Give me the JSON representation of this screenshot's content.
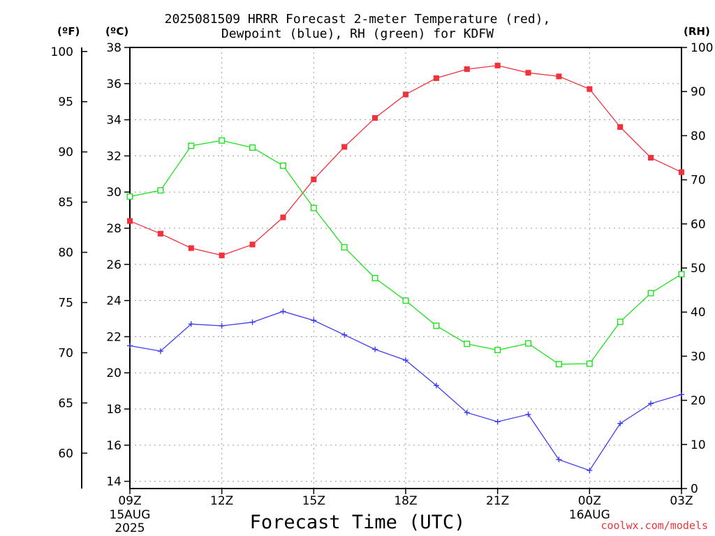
{
  "header": {
    "title_line1": "2025081509 HRRR Forecast 2-meter Temperature (red),",
    "title_line2": "Dewpoint (blue), RH (green) for KDFW",
    "unit_f": "(ºF)",
    "unit_c": "(ºC)",
    "unit_rh": "(RH)"
  },
  "footer": {
    "xlabel": "Forecast Time (UTC)",
    "credit": "coolwx.com/models"
  },
  "chart_data": {
    "type": "line",
    "title": "2025081509 HRRR Forecast 2-meter Temperature (red), Dewpoint (blue), RH (green) for KDFW",
    "xlabel": "Forecast Time (UTC)",
    "x_hours": [
      0,
      1,
      2,
      3,
      4,
      5,
      6,
      7,
      8,
      9,
      10,
      11,
      12,
      13,
      14,
      15,
      16,
      17,
      18
    ],
    "x_ticks": [
      {
        "hour": 0,
        "label": "09Z",
        "sub1": "15AUG",
        "sub2": "2025"
      },
      {
        "hour": 3,
        "label": "12Z"
      },
      {
        "hour": 6,
        "label": "15Z"
      },
      {
        "hour": 9,
        "label": "18Z"
      },
      {
        "hour": 12,
        "label": "21Z"
      },
      {
        "hour": 15,
        "label": "00Z",
        "sub1": "16AUG"
      },
      {
        "hour": 18,
        "label": "03Z"
      }
    ],
    "axes": {
      "celsius": {
        "range": [
          13.6,
          38
        ],
        "ticks": [
          14,
          16,
          18,
          20,
          22,
          24,
          26,
          28,
          30,
          32,
          34,
          36,
          38
        ]
      },
      "fahrenheit": {
        "ticks": [
          60,
          65,
          70,
          75,
          80,
          85,
          90,
          95,
          100
        ]
      },
      "rh": {
        "range": [
          0,
          100
        ],
        "ticks": [
          0,
          10,
          20,
          30,
          40,
          50,
          60,
          70,
          80,
          90,
          100
        ]
      }
    },
    "grid": true,
    "series": [
      {
        "name": "Temperature",
        "axis": "celsius",
        "color": "#f0323c",
        "marker": "filled-square",
        "values": [
          28.4,
          27.7,
          26.9,
          26.5,
          27.1,
          28.6,
          30.7,
          32.5,
          34.1,
          35.4,
          36.3,
          36.8,
          37.0,
          36.6,
          36.4,
          35.7,
          33.6,
          31.9,
          31.1
        ]
      },
      {
        "name": "Dewpoint",
        "axis": "celsius",
        "color": "#3c3cf0",
        "marker": "plus",
        "values": [
          21.5,
          21.2,
          22.7,
          22.6,
          22.8,
          23.4,
          22.9,
          22.1,
          21.3,
          20.7,
          19.3,
          17.8,
          17.3,
          17.7,
          15.2,
          14.6,
          17.2,
          18.3,
          18.8
        ]
      },
      {
        "name": "RH",
        "axis": "rh",
        "color": "#1ee11e",
        "marker": "open-square",
        "values": [
          66.2,
          67.6,
          77.7,
          78.9,
          77.3,
          73.2,
          63.6,
          54.7,
          47.7,
          42.6,
          36.9,
          32.8,
          31.4,
          32.9,
          28.2,
          28.3,
          37.8,
          44.3,
          48.6
        ]
      }
    ]
  }
}
